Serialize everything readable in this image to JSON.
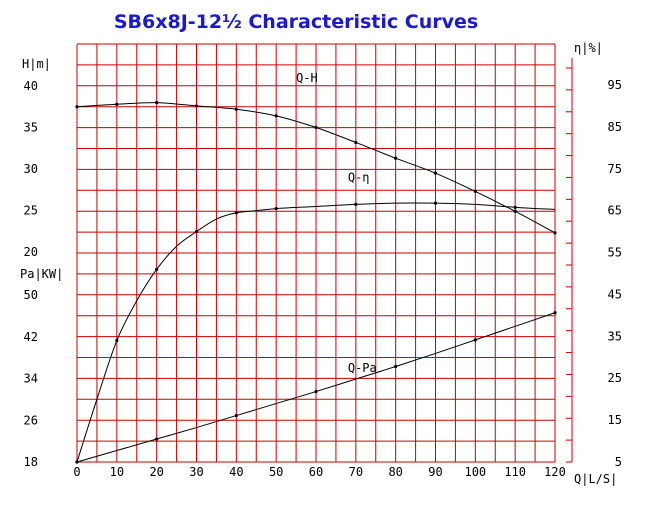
{
  "colors": {
    "grid": "#cc0000",
    "title": "#1a1ad6",
    "curve": "#000000"
  },
  "chart_data": {
    "type": "line",
    "title": "SB6x8J-12½ Characteristic Curves",
    "x_axis": {
      "label": "Q|L/S|",
      "range": [
        0,
        120
      ],
      "ticks": [
        "0",
        "10",
        "20",
        "30",
        "40",
        "50",
        "60",
        "70",
        "80",
        "90",
        "100",
        "110",
        "120"
      ]
    },
    "head_axis": {
      "label": "H|m|",
      "range": [
        20,
        40
      ],
      "ticks": [
        "40",
        "35",
        "30",
        "25",
        "20"
      ]
    },
    "power_axis": {
      "label": "Pa|KW|",
      "range": [
        18,
        50
      ],
      "ticks": [
        "50",
        "42",
        "34",
        "26",
        "18"
      ]
    },
    "efficiency_axis": {
      "label": "η|%|",
      "range": [
        5,
        95
      ],
      "ticks": [
        "95",
        "85",
        "75",
        "65",
        "55",
        "45",
        "35",
        "25",
        "15",
        "5"
      ]
    },
    "grid": true,
    "series": [
      {
        "name": "Q-H",
        "axis": "head",
        "label_at": [
          55,
          40.5
        ],
        "x": [
          0,
          10,
          20,
          30,
          40,
          50,
          60,
          70,
          80,
          90,
          100,
          110,
          120
        ],
        "values": [
          37.5,
          37.8,
          38.0,
          37.6,
          37.2,
          36.4,
          35.0,
          33.2,
          31.3,
          29.5,
          27.3,
          24.9,
          22.3
        ]
      },
      {
        "name": "Q-η",
        "axis": "efficiency",
        "label_at": [
          68,
          72
        ],
        "x": [
          0,
          5,
          10,
          15,
          20,
          25,
          30,
          35,
          40,
          45,
          50,
          60,
          70,
          80,
          90,
          100,
          110,
          120
        ],
        "values": [
          5,
          20,
          34,
          43.5,
          51,
          56.5,
          60,
          63,
          64.5,
          65,
          65.5,
          66,
          66.5,
          66.8,
          66.8,
          66.5,
          65.8,
          65.3
        ]
      },
      {
        "name": "Q-Pa",
        "axis": "power",
        "label_at": [
          68,
          35.2
        ],
        "x": [
          0,
          10,
          20,
          30,
          40,
          50,
          60,
          70,
          80,
          90,
          100,
          110,
          120
        ],
        "values": [
          18.0,
          20.2,
          22.4,
          24.6,
          26.9,
          29.2,
          31.5,
          33.9,
          36.3,
          38.8,
          41.4,
          44.0,
          46.6
        ]
      }
    ]
  }
}
